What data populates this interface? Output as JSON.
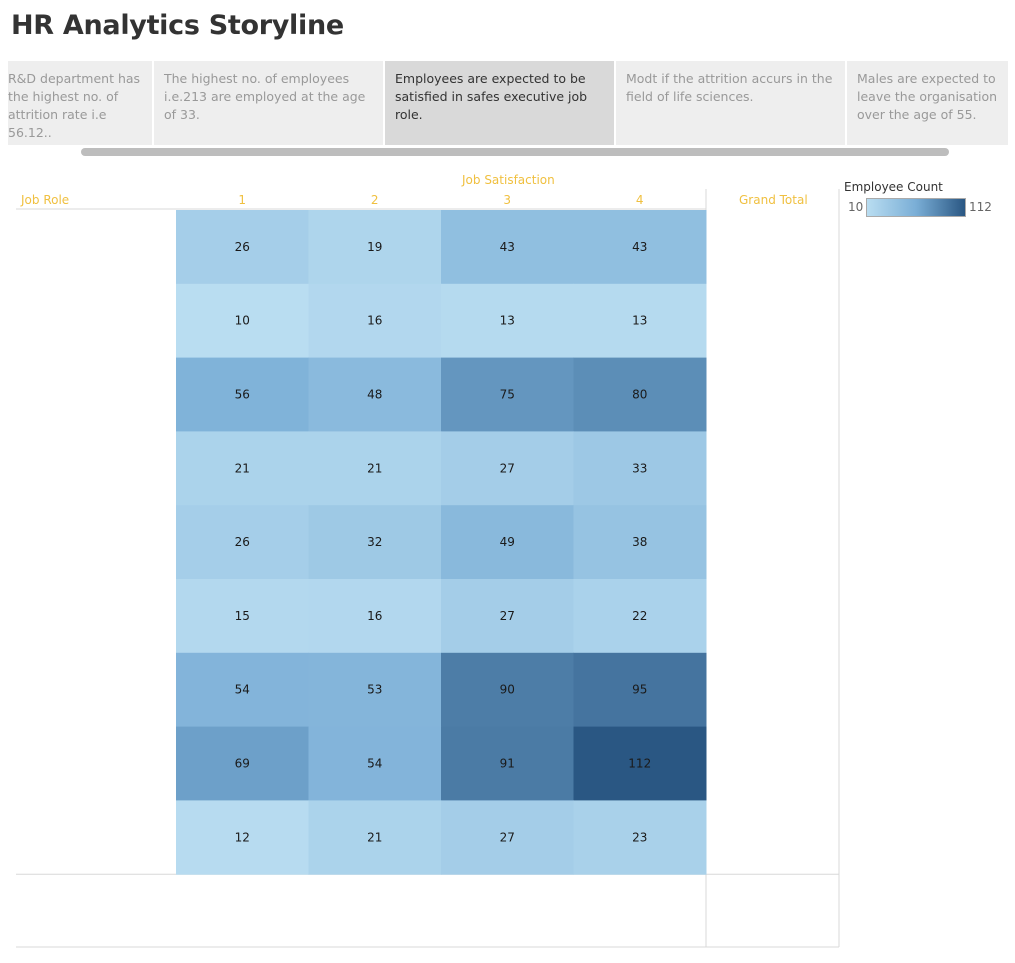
{
  "title": "HR Analytics Storyline",
  "story_points": [
    {
      "text": "R&D department has the highest no. of attrition rate i.e 56.12..",
      "active": false
    },
    {
      "text": "The highest no. of employees i.e.213 are employed at the age of 33.",
      "active": false
    },
    {
      "text": "Employees are expected to be satisfied in safes executive job role.",
      "active": true
    },
    {
      "text": "Modt if the attrition accurs in the field of life sciences.",
      "active": false
    },
    {
      "text": "Males are expected to leave the organisation over the age of 55.",
      "active": false
    }
  ],
  "legend": {
    "title": "Employee Count",
    "min_label": "10",
    "max_label": "112"
  },
  "chart_data": {
    "type": "heatmap",
    "column_group_label": "Job Satisfaction",
    "row_header": "Job Role",
    "total_header": "Grand Total",
    "columns": [
      "1",
      "2",
      "3",
      "4"
    ],
    "rows": [
      "",
      "",
      "",
      "",
      "",
      "",
      "",
      "",
      ""
    ],
    "values": [
      [
        26,
        19,
        43,
        43
      ],
      [
        10,
        16,
        13,
        13
      ],
      [
        56,
        48,
        75,
        80
      ],
      [
        21,
        21,
        27,
        33
      ],
      [
        26,
        32,
        49,
        38
      ],
      [
        15,
        16,
        27,
        22
      ],
      [
        54,
        53,
        90,
        95
      ],
      [
        69,
        54,
        91,
        112
      ],
      [
        12,
        21,
        27,
        23
      ]
    ],
    "color_range": [
      10,
      112
    ],
    "color_low": "#b9ddf1",
    "color_high": "#2a5783"
  }
}
